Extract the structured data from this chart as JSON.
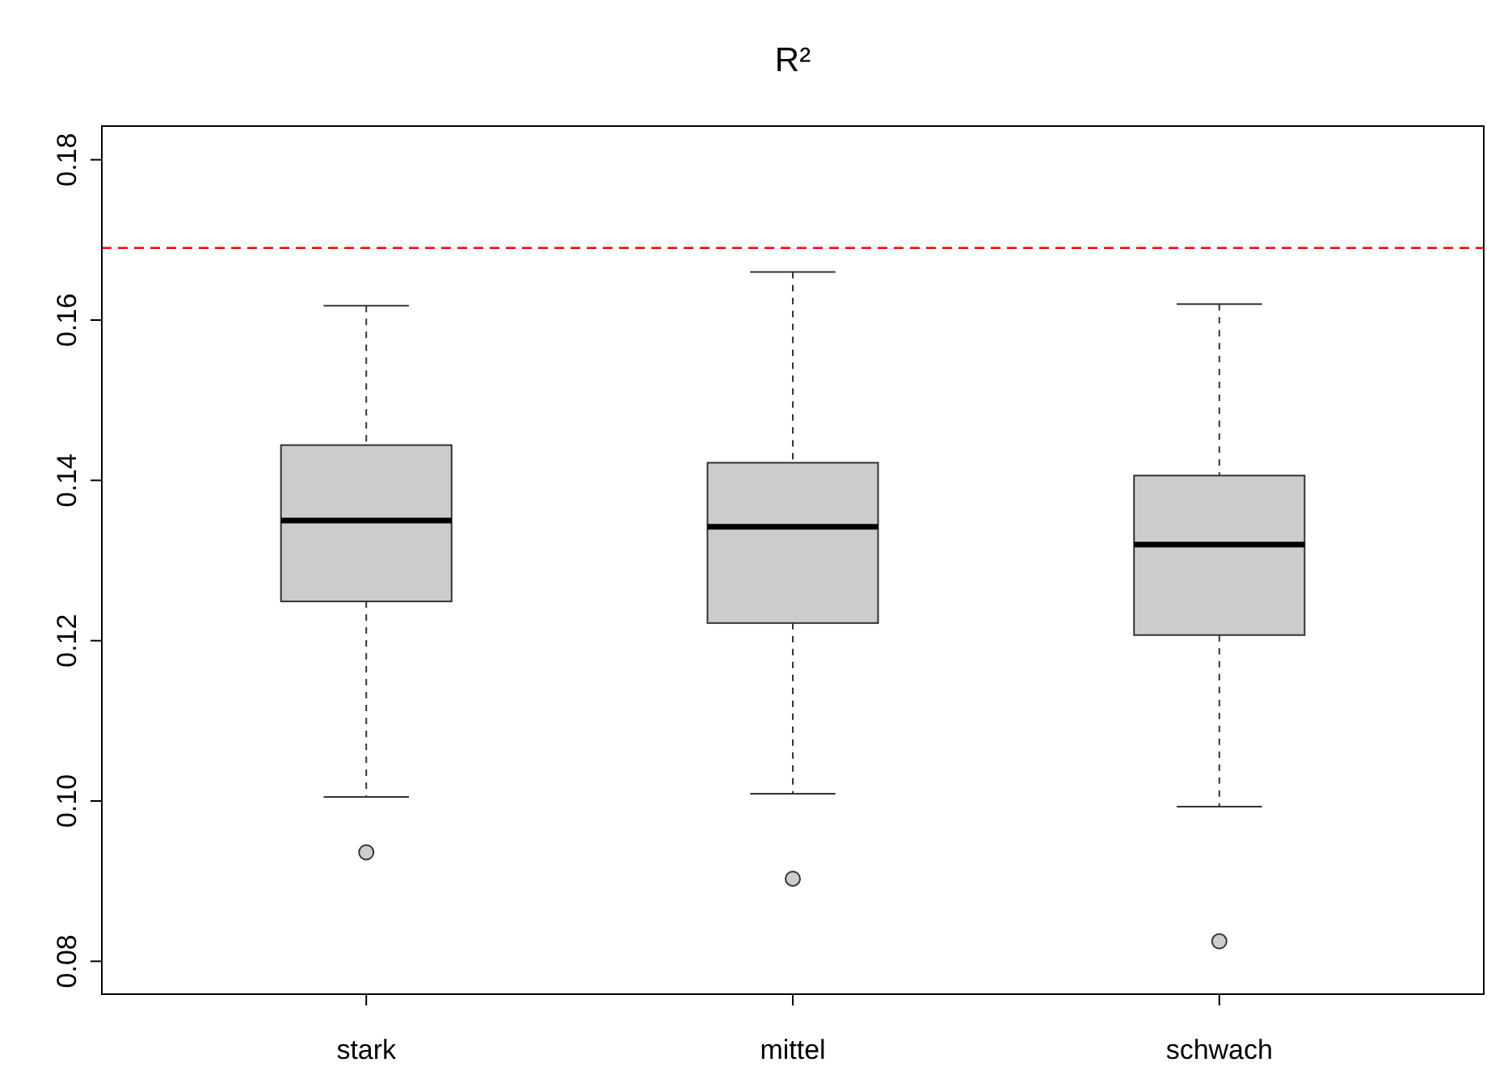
{
  "chart_data": {
    "type": "box",
    "title": "R²",
    "categories": [
      "stark",
      "mittel",
      "schwach"
    ],
    "color": "#cccccc",
    "boxes": [
      {
        "low": 0.1005,
        "q1": 0.1249,
        "median": 0.135,
        "q3": 0.1444,
        "high": 0.1618,
        "outliers": [
          0.0936
        ]
      },
      {
        "low": 0.1009,
        "q1": 0.1222,
        "median": 0.1342,
        "q3": 0.1422,
        "high": 0.166,
        "outliers": [
          0.0903
        ]
      },
      {
        "low": 0.0993,
        "q1": 0.1207,
        "median": 0.132,
        "q3": 0.1406,
        "high": 0.162,
        "outliers": [
          0.0825
        ]
      }
    ],
    "ylim": [
      0.0759,
      0.1842
    ],
    "yticks": [
      0.08,
      {
        "value": 0.1,
        "label": "0.10"
      },
      0.12,
      0.14,
      0.16,
      0.18
    ],
    "ref_lines": [
      {
        "axis": "y",
        "value": 0.169,
        "color": "#ff0000",
        "line_style": "dashed"
      }
    ]
  }
}
